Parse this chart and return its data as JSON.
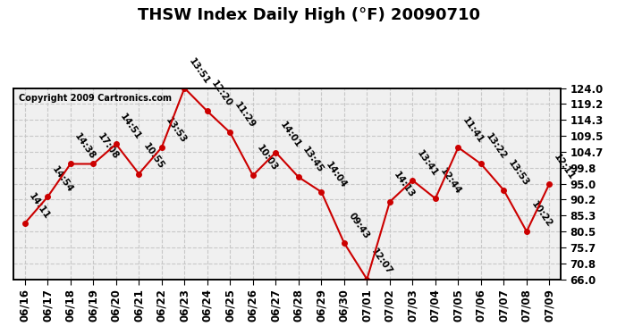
{
  "title": "THSW Index Daily High (°F) 20090710",
  "copyright": "Copyright 2009 Cartronics.com",
  "dates": [
    "06/16",
    "06/17",
    "06/18",
    "06/19",
    "06/20",
    "06/21",
    "06/22",
    "06/23",
    "06/24",
    "06/25",
    "06/26",
    "06/27",
    "06/28",
    "06/29",
    "06/30",
    "07/01",
    "07/02",
    "07/03",
    "07/04",
    "07/05",
    "07/06",
    "07/07",
    "07/08",
    "07/09"
  ],
  "values": [
    83.0,
    91.0,
    101.0,
    101.0,
    107.0,
    98.0,
    106.0,
    124.0,
    117.0,
    110.5,
    97.5,
    104.5,
    97.0,
    92.5,
    77.0,
    66.0,
    89.5,
    96.0,
    90.5,
    106.0,
    101.0,
    93.0,
    80.5,
    95.0
  ],
  "labels": [
    "14:11",
    "14:54",
    "14:38",
    "17:08",
    "14:51",
    "10:55",
    "13:53",
    "13:51",
    "12:20",
    "11:29",
    "10:03",
    "14:01",
    "13:45",
    "14:04",
    "09:43",
    "12:07",
    "14:13",
    "13:41",
    "12:44",
    "11:41",
    "13:22",
    "13:53",
    "10:22",
    "12:11"
  ],
  "ylim_min": 66.0,
  "ylim_max": 124.0,
  "yticks": [
    66.0,
    70.8,
    75.7,
    80.5,
    85.3,
    90.2,
    95.0,
    99.8,
    104.7,
    109.5,
    114.3,
    119.2,
    124.0
  ],
  "line_color": "#cc0000",
  "marker_color": "#cc0000",
  "bg_color": "#ffffff",
  "plot_bg_color": "#f0f0f0",
  "grid_color": "#c8c8c8",
  "title_fontsize": 13,
  "label_fontsize": 7.5,
  "tick_fontsize": 8.5
}
